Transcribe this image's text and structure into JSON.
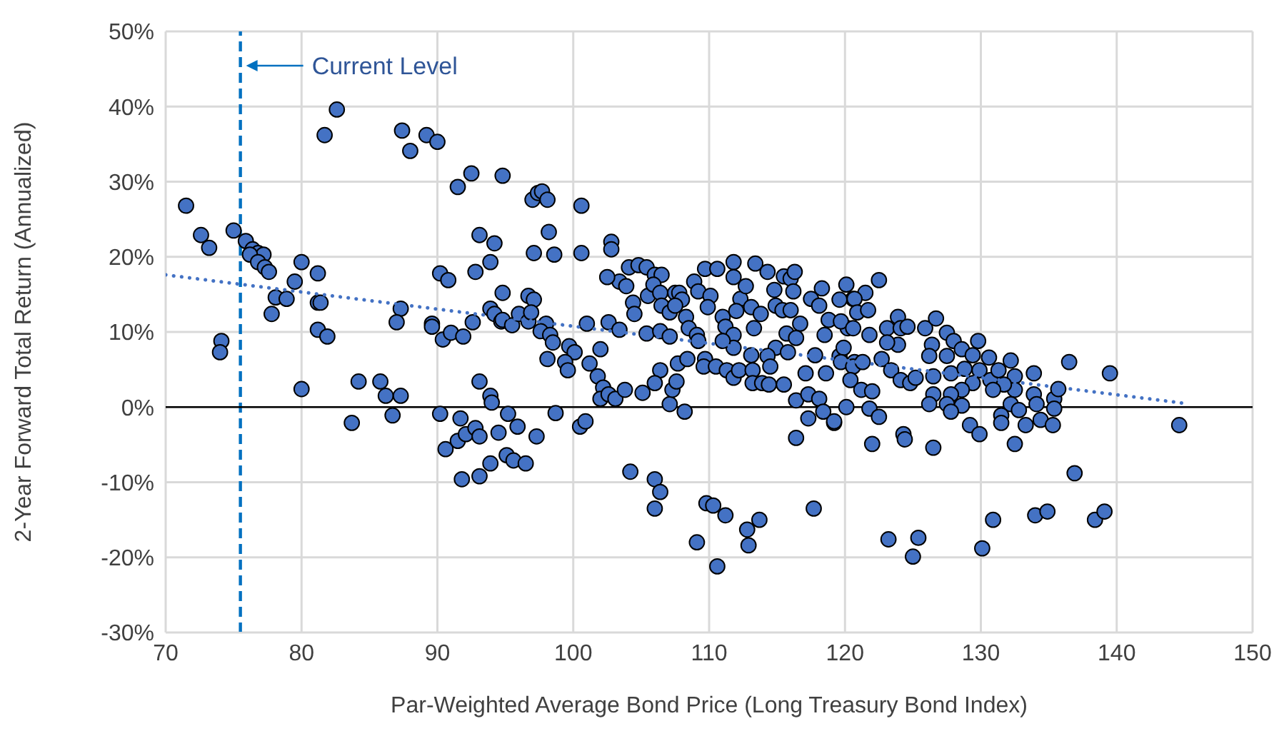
{
  "chart_data": {
    "type": "scatter",
    "xlabel": "Par-Weighted Average Bond Price (Long Treasury Bond Index)",
    "ylabel": "2-Year Forward Total Return (Annualized)",
    "xlim": [
      70,
      150
    ],
    "xticks": [
      70,
      80,
      90,
      100,
      110,
      120,
      130,
      140,
      150
    ],
    "ylim": [
      -30,
      50
    ],
    "yticks": [
      {
        "value": -30,
        "label": "-30%"
      },
      {
        "value": -20,
        "label": "-20%"
      },
      {
        "value": -10,
        "label": "-10%"
      },
      {
        "value": 0,
        "label": "0%"
      },
      {
        "value": 10,
        "label": "10%"
      },
      {
        "value": 20,
        "label": "20%"
      },
      {
        "value": 30,
        "label": "30%"
      },
      {
        "value": 40,
        "label": "40%"
      },
      {
        "value": 50,
        "label": "50%"
      }
    ],
    "grid": true,
    "marker": "circle",
    "ref_lines": [
      {
        "axis": "x",
        "value": 75.5,
        "label": "Current Level",
        "color": "#0070c0",
        "line_style": "dashed"
      },
      {
        "axis": "y",
        "value": 0,
        "color": "#000000",
        "line_style": "solid"
      }
    ],
    "series": [
      {
        "type": "scatter",
        "color": "#4472c4",
        "x": [
          71.5,
          72.6,
          73.2,
          74.1,
          74.0,
          75.0,
          75.9,
          76.4,
          76.8,
          77.2,
          76.2,
          76.8,
          77.3,
          77.6,
          78.1,
          77.8,
          79.5,
          80.0,
          78.9,
          81.2,
          81.2,
          81.4,
          81.2,
          81.9,
          80.0,
          81.7,
          82.6,
          83.7,
          84.2,
          85.8,
          86.2,
          87.3,
          86.7,
          87.3,
          87.0,
          87.4,
          88.0,
          89.2,
          90.0,
          91.5,
          92.5,
          94.8,
          93.1,
          94.2,
          93.9,
          92.8,
          90.2,
          90.8,
          94.8,
          89.6,
          89.6,
          90.4,
          91.0,
          91.9,
          92.6,
          93.9,
          94.2,
          94.7,
          90.2,
          91.7,
          93.1,
          93.9,
          94.0,
          95.2,
          90.6,
          91.5,
          92.1,
          92.8,
          93.1,
          91.8,
          93.1,
          93.9,
          94.5,
          95.1,
          97.0,
          97.4,
          97.7,
          98.1,
          100.6,
          98.2,
          97.1,
          98.6,
          100.6,
          102.8,
          102.8,
          96.7,
          97.1,
          94.8,
          95.5,
          96.0,
          96.7,
          96.9,
          98.0,
          97.6,
          98.3,
          98.5,
          99.7,
          100.1,
          99.4,
          99.6,
          101.2,
          101.0,
          98.1,
          102.0,
          102.6,
          103.4,
          101.8,
          102.2,
          102.0,
          102.6,
          103.1,
          103.8,
          98.7,
          95.9,
          97.3,
          95.6,
          96.5,
          100.5,
          100.9,
          104.2,
          106.0,
          106.4,
          106.0,
          109.8,
          110.3,
          111.2,
          109.1,
          110.6,
          112.8,
          113.7,
          112.9,
          117.7,
          116.4,
          105.1,
          107.1,
          108.2,
          107.3,
          107.6,
          106.4,
          106.0,
          107.7,
          108.4,
          109.7,
          109.6,
          110.5,
          111.3,
          111.8,
          112.2,
          113.2,
          113.2,
          113.9,
          114.4,
          115.5,
          116.4,
          117.3,
          118.1,
          118.4,
          117.3,
          119.2,
          120.1,
          104.1,
          104.8,
          105.4,
          106.0,
          106.5,
          103.4,
          103.9,
          102.5,
          104.4,
          104.5,
          105.5,
          105.9,
          106.4,
          106.5,
          107.1,
          107.5,
          107.8,
          108.0,
          107.5,
          105.4,
          106.4,
          107.1,
          108.3,
          108.5,
          109.1,
          109.2,
          108.9,
          109.2,
          109.7,
          110.6,
          110.1,
          109.9,
          111.0,
          111.2,
          111.8,
          111.8,
          111.0,
          111.8,
          111.8,
          112.3,
          112.7,
          112.0,
          113.4,
          114.3,
          113.1,
          113.8,
          113.3,
          113.1,
          114.8,
          114.9,
          115.4,
          115.7,
          114.9,
          114.3,
          114.5,
          115.5,
          116.0,
          116.3,
          116.2,
          116.0,
          116.7,
          116.4,
          115.8,
          117.1,
          117.5,
          118.3,
          118.1,
          118.8,
          118.5,
          117.8,
          118.6,
          119.6,
          120.1,
          120.6,
          120.2,
          119.9,
          120.7,
          122.5,
          121.5,
          120.7,
          119.6,
          120.9,
          121.7,
          119.7,
          120.6,
          121.8,
          123.1,
          123.9,
          124.1,
          124.6,
          123.9,
          123.1,
          119.7,
          120.6,
          121.3,
          122.7,
          123.4,
          124.1,
          124.8,
          125.2,
          120.4,
          121.2,
          122.0,
          121.8,
          122.5,
          119.2,
          122.0,
          124.3,
          124.4,
          126.5,
          123.2,
          125.4,
          125.0,
          125.9,
          126.7,
          127.5,
          128.0,
          126.4,
          126.2,
          127.5,
          128.6,
          129.8,
          129.4,
          130.6,
          126.5,
          127.8,
          128.8,
          129.4,
          128.6,
          127.8,
          126.5,
          126.2,
          127.5,
          128.6,
          127.8,
          129.9,
          130.7,
          131.3,
          132.2,
          132.5,
          132.5,
          131.7,
          130.9,
          132.2,
          132.8,
          131.5,
          129.2,
          129.9,
          131.5,
          132.5,
          133.3,
          133.9,
          133.9,
          134.1,
          135.4,
          135.4,
          135.7,
          134.4,
          135.3,
          136.5,
          139.5,
          144.6,
          136.9,
          130.9,
          134.0,
          134.9,
          138.4,
          139.1,
          130.1
        ],
        "values": [
          26.8,
          22.9,
          21.2,
          8.8,
          7.3,
          23.5,
          22.1,
          21.0,
          20.5,
          20.3,
          20.3,
          19.3,
          18.6,
          18.0,
          14.6,
          12.4,
          16.7,
          19.3,
          14.4,
          17.8,
          13.9,
          13.9,
          10.3,
          9.4,
          2.4,
          36.2,
          39.6,
          -2.1,
          3.4,
          3.4,
          1.5,
          1.5,
          -1.1,
          13.1,
          11.3,
          36.8,
          34.1,
          36.2,
          35.3,
          29.3,
          31.1,
          30.8,
          22.9,
          21.8,
          19.3,
          18.0,
          17.8,
          16.9,
          15.2,
          11.1,
          10.7,
          9.0,
          9.9,
          9.4,
          11.3,
          13.1,
          12.4,
          11.4,
          -0.9,
          -1.5,
          3.4,
          1.5,
          0.6,
          -0.9,
          -5.6,
          -4.5,
          -3.6,
          -2.8,
          -3.9,
          -9.6,
          -9.2,
          -7.5,
          -3.4,
          -6.4,
          27.6,
          28.5,
          28.7,
          27.6,
          26.8,
          23.3,
          20.5,
          20.3,
          20.5,
          22.0,
          21.0,
          14.8,
          14.3,
          11.6,
          10.9,
          12.4,
          11.4,
          12.6,
          11.1,
          10.1,
          9.6,
          8.6,
          8.1,
          7.3,
          6.0,
          4.9,
          5.8,
          11.1,
          6.4,
          7.7,
          11.3,
          10.3,
          4.1,
          2.6,
          1.1,
          1.7,
          1.1,
          2.3,
          -0.8,
          -2.6,
          -3.9,
          -7.1,
          -7.5,
          -2.6,
          -1.9,
          -8.6,
          -9.6,
          -11.3,
          -13.5,
          -12.8,
          -13.1,
          -14.4,
          -18.0,
          -21.2,
          -16.3,
          -15.0,
          -18.4,
          -13.5,
          -4.1,
          1.9,
          0.4,
          -0.6,
          2.3,
          3.4,
          4.9,
          3.2,
          5.8,
          6.4,
          6.4,
          5.4,
          5.4,
          4.9,
          3.9,
          4.9,
          4.9,
          3.2,
          3.2,
          3.0,
          3.0,
          0.9,
          1.7,
          1.1,
          -0.6,
          -1.5,
          -2.1,
          0.0,
          18.6,
          18.9,
          18.6,
          17.6,
          17.6,
          16.7,
          16.1,
          17.3,
          13.9,
          12.4,
          14.8,
          16.3,
          15.2,
          13.5,
          12.6,
          15.2,
          15.2,
          14.3,
          13.5,
          9.8,
          10.1,
          9.4,
          12.0,
          10.5,
          9.6,
          8.8,
          16.7,
          15.4,
          18.4,
          18.4,
          14.8,
          13.3,
          12.0,
          10.7,
          9.6,
          7.9,
          8.8,
          19.3,
          17.3,
          14.4,
          16.1,
          12.8,
          19.1,
          18.0,
          13.3,
          12.4,
          10.5,
          6.9,
          15.6,
          13.5,
          12.9,
          9.8,
          7.9,
          6.8,
          5.4,
          17.4,
          17.1,
          18.0,
          15.4,
          12.9,
          11.1,
          9.2,
          7.3,
          4.5,
          14.4,
          15.8,
          13.5,
          11.6,
          9.6,
          6.9,
          4.5,
          6.8,
          16.3,
          14.4,
          10.5,
          7.9,
          6.0,
          16.9,
          15.2,
          14.4,
          14.3,
          12.6,
          12.9,
          11.4,
          10.5,
          9.6,
          10.5,
          12.0,
          10.5,
          10.7,
          8.3,
          8.6,
          6.0,
          5.4,
          6.0,
          6.4,
          4.9,
          3.6,
          3.2,
          3.9,
          3.6,
          2.3,
          2.1,
          -0.2,
          -1.3,
          -1.9,
          -4.9,
          -3.6,
          -4.3,
          -5.4,
          -17.6,
          -17.4,
          -19.9,
          10.5,
          11.8,
          9.9,
          8.8,
          8.3,
          6.8,
          6.8,
          7.7,
          8.8,
          6.9,
          6.6,
          4.1,
          4.5,
          5.1,
          3.2,
          2.3,
          1.7,
          1.7,
          0.4,
          0.4,
          0.2,
          -0.6,
          4.9,
          3.6,
          4.9,
          6.2,
          4.1,
          2.3,
          3.0,
          2.3,
          0.4,
          -0.4,
          -1.1,
          -2.4,
          -3.6,
          -2.1,
          -4.9,
          -2.4,
          4.5,
          1.7,
          0.4,
          1.1,
          -0.2,
          2.4,
          -1.7,
          -2.4,
          6.0,
          4.5,
          -2.4,
          -8.8,
          -15.0,
          -14.4,
          -13.9,
          -15.0,
          -13.9,
          -18.8
        ]
      },
      {
        "type": "line",
        "color": "#4472c4",
        "x": [
          70,
          145
        ],
        "values": [
          17.6,
          0.5
        ],
        "line_style": "dotted",
        "marker": "none"
      }
    ]
  }
}
